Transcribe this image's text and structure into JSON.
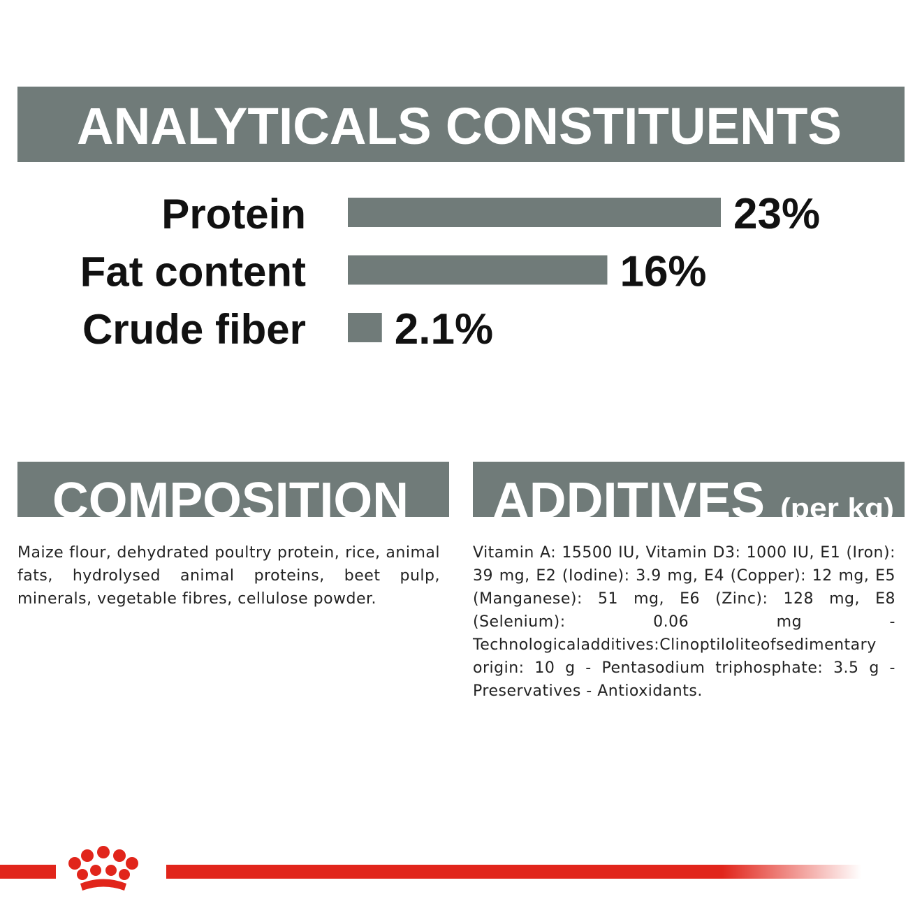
{
  "chart_data": {
    "type": "bar",
    "title": "ANALYTICALS CONSTITUENTS",
    "categories": [
      "Protein",
      "Fat content",
      "Crude fiber"
    ],
    "values": [
      23,
      16,
      2.1
    ],
    "value_labels": [
      "23%",
      "16%",
      "2.1%"
    ],
    "color": "#707b79"
  },
  "composition": {
    "title": "COMPOSITION",
    "text": "Maize flour, dehydrated poultry protein, rice, animal fats, hydrolysed animal proteins, beet pulp, minerals, vegetable fibres, cellulose powder."
  },
  "additives": {
    "title": "ADDITIVES",
    "subtitle": "(per kg)",
    "text": "Vitamin A: 15500 IU, Vitamin D3: 1000 IU, E1 (Iron): 39 mg, E2 (Iodine): 3.9 mg, E4 (Copper): 12 mg, E5 (Manganese): 51 mg, E6 (Zinc): 128 mg, E8 (Selenium): 0.06 mg - Technologicaladditives:Clinoptiloliteofsedimentary origin: 10 g - Pentasodium triphosphate: 3.5 g - Preservatives - Antioxidants."
  }
}
